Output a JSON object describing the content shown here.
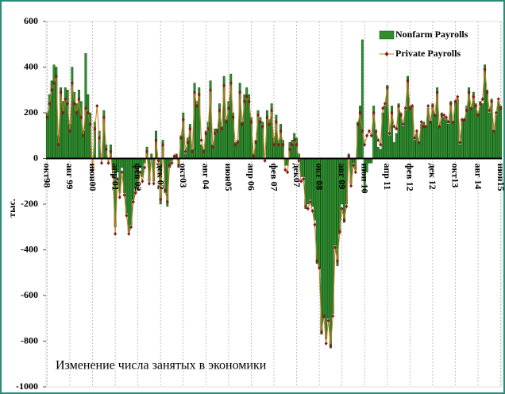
{
  "chart_data": {
    "type": "bar",
    "annotation": "Изменение числа занятых в экономики",
    "ylabel": "тыс.",
    "ylim": [
      -1000,
      600
    ],
    "yticks": [
      -1000,
      -800,
      -600,
      -400,
      -200,
      0,
      200,
      400,
      600
    ],
    "legend": "upper right",
    "categories": [
      "окт98",
      null,
      null,
      null,
      null,
      null,
      null,
      null,
      null,
      null,
      "авг 99",
      null,
      null,
      null,
      null,
      null,
      null,
      null,
      null,
      null,
      "июн00",
      null,
      null,
      null,
      null,
      null,
      null,
      null,
      null,
      null,
      "апр 01",
      null,
      null,
      null,
      null,
      null,
      null,
      null,
      null,
      null,
      "фев 02",
      null,
      null,
      null,
      null,
      null,
      null,
      null,
      null,
      null,
      "дек 02",
      null,
      null,
      null,
      null,
      null,
      null,
      null,
      null,
      null,
      "окт03",
      null,
      null,
      null,
      null,
      null,
      null,
      null,
      null,
      null,
      "авг 04",
      null,
      null,
      null,
      null,
      null,
      null,
      null,
      null,
      null,
      "июн05",
      null,
      null,
      null,
      null,
      null,
      null,
      null,
      null,
      null,
      "апр 06",
      null,
      null,
      null,
      null,
      null,
      null,
      null,
      null,
      null,
      "фев 07",
      null,
      null,
      null,
      null,
      null,
      null,
      null,
      null,
      null,
      "дек07",
      null,
      null,
      null,
      null,
      null,
      null,
      null,
      null,
      null,
      "окт 08",
      null,
      null,
      null,
      null,
      null,
      null,
      null,
      null,
      null,
      "авг 09",
      null,
      null,
      null,
      null,
      null,
      null,
      null,
      null,
      null,
      "июн 10",
      null,
      null,
      null,
      null,
      null,
      null,
      null,
      null,
      null,
      "апр 11",
      null,
      null,
      null,
      null,
      null,
      null,
      null,
      null,
      null,
      "фев 12",
      null,
      null,
      null,
      null,
      null,
      null,
      null,
      null,
      null,
      "дек 12",
      null,
      null,
      null,
      null,
      null,
      null,
      null,
      null,
      null,
      "окт13",
      null,
      null,
      null,
      null,
      null,
      null,
      null,
      null,
      null,
      "авг 14",
      null,
      null,
      null,
      null,
      null,
      null,
      null,
      null,
      null,
      "июн15"
    ],
    "series": [
      {
        "name": "Nonfarm Payrolls",
        "type": "bar",
        "color": "#2f8f2f",
        "values": [
          200,
          280,
          340,
          410,
          400,
          100,
          310,
          250,
          310,
          300,
          150,
          400,
          290,
          240,
          300,
          250,
          120,
          460,
          280,
          200,
          0,
          160,
          0,
          120,
          0,
          210,
          60,
          0,
          60,
          -50,
          -300,
          -60,
          -150,
          -40,
          -150,
          -240,
          -320,
          -290,
          -180,
          -130,
          -140,
          -40,
          -80,
          -20,
          50,
          -100,
          20,
          -100,
          120,
          0,
          -200,
          80,
          -150,
          -210,
          -40,
          -10,
          0,
          20,
          -40,
          100,
          200,
          20,
          90,
          150,
          40,
          330,
          250,
          310,
          60,
          40,
          120,
          160,
          340,
          60,
          130,
          130,
          240,
          140,
          360,
          170,
          250,
          370,
          200,
          70,
          80,
          330,
          160,
          280,
          310,
          280,
          180,
          20,
          80,
          210,
          180,
          160,
          0,
          210,
          170,
          240,
          90,
          190,
          80,
          150,
          80,
          -30,
          -30,
          70,
          80,
          110,
          90,
          20,
          -80,
          -80,
          -220,
          -200,
          -180,
          -210,
          -270,
          -460,
          -480,
          -770,
          -700,
          -790,
          -700,
          -830,
          -680,
          -380,
          -470,
          -330,
          -200,
          -280,
          -200,
          20,
          -110,
          -20,
          -50,
          160,
          230,
          520,
          -150,
          -60,
          -20,
          -20,
          230,
          120,
          50,
          40,
          200,
          230,
          320,
          100,
          230,
          70,
          110,
          240,
          200,
          140,
          210,
          360,
          230,
          230,
          80,
          110,
          70,
          150,
          160,
          140,
          220,
          160,
          240,
          190,
          310,
          140,
          200,
          180,
          170,
          150,
          250,
          160,
          250,
          260,
          60,
          170,
          170,
          230,
          310,
          220,
          290,
          240,
          200,
          250,
          240,
          410,
          300,
          200,
          260,
          120,
          190,
          250,
          230
        ]
      },
      {
        "name": "Private Payrolls",
        "type": "line",
        "color": "#8b1a1a",
        "values": [
          180,
          240,
          300,
          330,
          360,
          60,
          290,
          200,
          260,
          240,
          120,
          330,
          240,
          200,
          260,
          180,
          100,
          220,
          200,
          150,
          -50,
          130,
          230,
          90,
          -20,
          180,
          40,
          -20,
          30,
          -80,
          -330,
          -90,
          -170,
          -60,
          -160,
          -250,
          -330,
          -300,
          -190,
          -150,
          -130,
          -60,
          -100,
          -40,
          30,
          -110,
          0,
          -110,
          80,
          -10,
          -180,
          60,
          -140,
          -190,
          -30,
          -20,
          10,
          10,
          -30,
          90,
          170,
          30,
          70,
          130,
          30,
          290,
          230,
          280,
          80,
          30,
          110,
          130,
          300,
          50,
          110,
          120,
          210,
          130,
          320,
          160,
          220,
          330,
          180,
          60,
          70,
          290,
          150,
          250,
          270,
          250,
          160,
          10,
          70,
          190,
          160,
          140,
          -10,
          180,
          150,
          210,
          60,
          160,
          60,
          120,
          60,
          -50,
          -60,
          40,
          60,
          80,
          60,
          -10,
          -100,
          -90,
          -210,
          -220,
          -190,
          -230,
          -290,
          -450,
          -480,
          -760,
          -690,
          -810,
          -710,
          -820,
          -690,
          -390,
          -450,
          -320,
          -220,
          -270,
          -210,
          10,
          -120,
          -30,
          -60,
          150,
          200,
          120,
          60,
          100,
          120,
          100,
          200,
          120,
          80,
          60,
          220,
          240,
          310,
          110,
          200,
          140,
          130,
          230,
          190,
          150,
          220,
          340,
          220,
          230,
          90,
          120,
          70,
          160,
          140,
          140,
          230,
          160,
          230,
          190,
          290,
          140,
          190,
          190,
          180,
          160,
          240,
          160,
          250,
          270,
          70,
          170,
          170,
          210,
          290,
          220,
          270,
          230,
          190,
          240,
          260,
          390,
          290,
          210,
          250,
          120,
          200,
          260,
          220
        ]
      }
    ]
  }
}
